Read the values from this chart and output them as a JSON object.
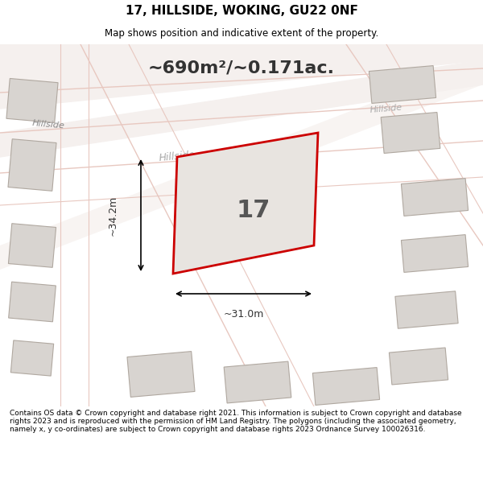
{
  "title": "17, HILLSIDE, WOKING, GU22 0NF",
  "subtitle": "Map shows position and indicative extent of the property.",
  "area_text": "~690m²/~0.171ac.",
  "property_number": "17",
  "dim1_label": "~34.2m",
  "dim2_label": "~31.0m",
  "footer": "Contains OS data © Crown copyright and database right 2021. This information is subject to Crown copyright and database rights 2023 and is reproduced with the permission of HM Land Registry. The polygons (including the associated geometry, namely x, y co-ordinates) are subject to Crown copyright and database rights 2023 Ordnance Survey 100026316.",
  "map_bg": "#f0eeec",
  "road_color": "#ffffff",
  "road_line_color": "#e8c8c0",
  "property_fill": "#e8e4e0",
  "property_outline": "#cc0000",
  "building_fill": "#d8d4d0",
  "building_outline": "#b0a8a0",
  "footer_bg": "#ffffff",
  "header_bg": "#ffffff"
}
